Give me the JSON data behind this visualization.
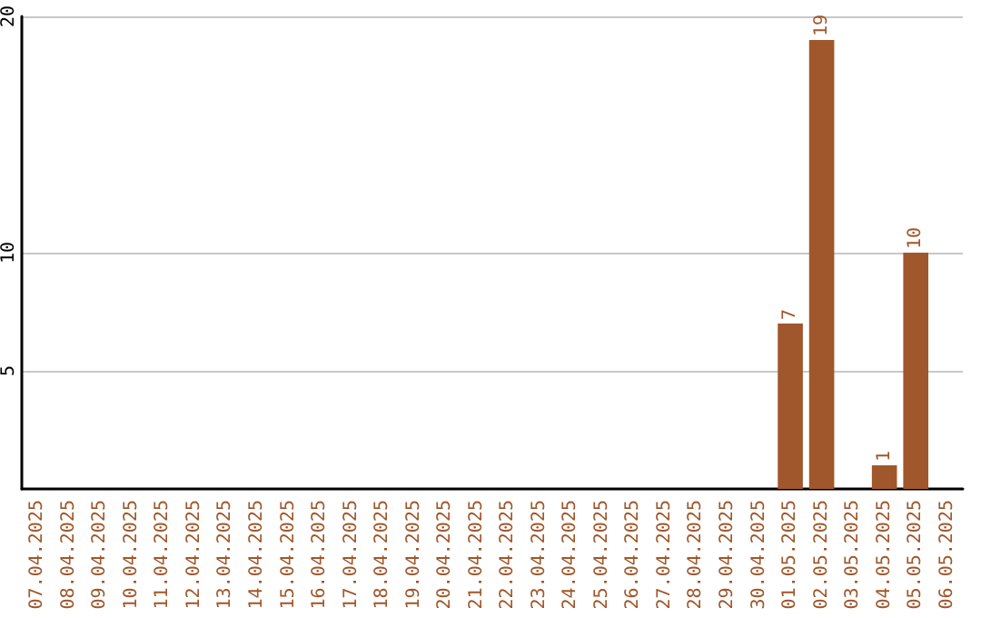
{
  "chart_data": {
    "type": "bar",
    "categories": [
      "07.04.2025",
      "08.04.2025",
      "09.04.2025",
      "10.04.2025",
      "11.04.2025",
      "12.04.2025",
      "13.04.2025",
      "14.04.2025",
      "15.04.2025",
      "16.04.2025",
      "17.04.2025",
      "18.04.2025",
      "19.04.2025",
      "20.04.2025",
      "21.04.2025",
      "22.04.2025",
      "23.04.2025",
      "24.04.2025",
      "25.04.2025",
      "26.04.2025",
      "27.04.2025",
      "28.04.2025",
      "29.04.2025",
      "30.04.2025",
      "01.05.2025",
      "02.05.2025",
      "03.05.2025",
      "04.05.2025",
      "05.05.2025",
      "06.05.2025"
    ],
    "values": [
      null,
      null,
      null,
      null,
      null,
      null,
      null,
      null,
      null,
      null,
      null,
      null,
      null,
      null,
      null,
      null,
      null,
      null,
      null,
      null,
      null,
      null,
      null,
      null,
      7,
      19,
      null,
      1,
      10,
      null
    ],
    "color": "#a0572b",
    "ylim": [
      0,
      20
    ],
    "yticks": [
      5,
      10,
      20
    ],
    "grid": "y",
    "data_labels": true
  }
}
